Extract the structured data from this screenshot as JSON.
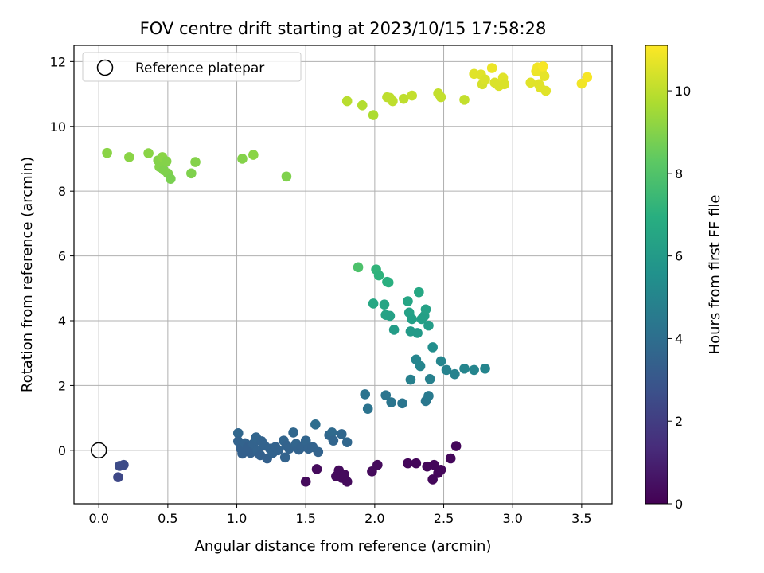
{
  "chart_data": {
    "type": "scatter",
    "title": "FOV centre drift starting at 2023/10/15 17:58:28",
    "xlabel": "Angular distance from reference (arcmin)",
    "ylabel": "Rotation from reference (arcmin)",
    "xlim": [
      -0.18,
      3.72
    ],
    "ylim": [
      -1.65,
      12.5
    ],
    "xticks": [
      "0.0",
      "0.5",
      "1.0",
      "1.5",
      "2.0",
      "2.5",
      "3.0",
      "3.5"
    ],
    "yticks": [
      "0",
      "2",
      "4",
      "6",
      "8",
      "10",
      "12"
    ],
    "grid": true,
    "legend": {
      "position": "upper-left",
      "label": "Reference platepar"
    },
    "reference_point": {
      "x": 0.0,
      "y": 0.0
    },
    "colorbar": {
      "label": "Hours from first FF file",
      "colormap": "viridis",
      "range": [
        0,
        11.1
      ],
      "ticks": [
        "0",
        "2",
        "4",
        "6",
        "8",
        "10"
      ]
    },
    "points": [
      {
        "x": 0.15,
        "y": -0.48,
        "h": 2.5
      },
      {
        "x": 0.18,
        "y": -0.45,
        "h": 2.5
      },
      {
        "x": 0.14,
        "y": -0.83,
        "h": 2.4
      },
      {
        "x": 1.5,
        "y": -0.97,
        "h": 0.3
      },
      {
        "x": 1.58,
        "y": -0.58,
        "h": 0.3
      },
      {
        "x": 1.72,
        "y": -0.8,
        "h": 0.3
      },
      {
        "x": 1.74,
        "y": -0.62,
        "h": 0.3
      },
      {
        "x": 1.76,
        "y": -0.85,
        "h": 0.3
      },
      {
        "x": 1.78,
        "y": -0.75,
        "h": 0.3
      },
      {
        "x": 1.8,
        "y": -0.97,
        "h": 0.3
      },
      {
        "x": 1.98,
        "y": -0.65,
        "h": 0.3
      },
      {
        "x": 2.02,
        "y": -0.45,
        "h": 0.3
      },
      {
        "x": 2.24,
        "y": -0.4,
        "h": 0.2
      },
      {
        "x": 2.3,
        "y": -0.4,
        "h": 0.2
      },
      {
        "x": 2.38,
        "y": -0.5,
        "h": 0.2
      },
      {
        "x": 2.42,
        "y": -0.9,
        "h": 0.2
      },
      {
        "x": 2.43,
        "y": -0.45,
        "h": 0.2
      },
      {
        "x": 2.46,
        "y": -0.7,
        "h": 0.2
      },
      {
        "x": 2.48,
        "y": -0.6,
        "h": 0.2
      },
      {
        "x": 2.55,
        "y": -0.25,
        "h": 0.2
      },
      {
        "x": 2.59,
        "y": 0.13,
        "h": 0.2
      },
      {
        "x": 1.01,
        "y": 0.53,
        "h": 3.7
      },
      {
        "x": 1.01,
        "y": 0.28,
        "h": 3.5
      },
      {
        "x": 1.03,
        "y": 0.05,
        "h": 3.4
      },
      {
        "x": 1.04,
        "y": -0.1,
        "h": 3.4
      },
      {
        "x": 1.06,
        "y": 0.22,
        "h": 3.5
      },
      {
        "x": 1.08,
        "y": 0.1,
        "h": 3.4
      },
      {
        "x": 1.1,
        "y": -0.08,
        "h": 3.4
      },
      {
        "x": 1.12,
        "y": 0.2,
        "h": 3.5
      },
      {
        "x": 1.14,
        "y": 0.4,
        "h": 3.6
      },
      {
        "x": 1.15,
        "y": 0.0,
        "h": 3.5
      },
      {
        "x": 1.17,
        "y": -0.15,
        "h": 3.4
      },
      {
        "x": 1.18,
        "y": 0.28,
        "h": 3.5
      },
      {
        "x": 1.2,
        "y": 0.15,
        "h": 3.5
      },
      {
        "x": 1.22,
        "y": -0.25,
        "h": 3.4
      },
      {
        "x": 1.24,
        "y": 0.05,
        "h": 3.5
      },
      {
        "x": 1.26,
        "y": -0.08,
        "h": 3.5
      },
      {
        "x": 1.28,
        "y": 0.1,
        "h": 3.5
      },
      {
        "x": 1.3,
        "y": 0.0,
        "h": 3.5
      },
      {
        "x": 1.34,
        "y": 0.3,
        "h": 3.6
      },
      {
        "x": 1.35,
        "y": -0.22,
        "h": 3.5
      },
      {
        "x": 1.36,
        "y": 0.15,
        "h": 3.5
      },
      {
        "x": 1.38,
        "y": 0.05,
        "h": 3.5
      },
      {
        "x": 1.41,
        "y": 0.55,
        "h": 3.7
      },
      {
        "x": 1.43,
        "y": 0.2,
        "h": 3.6
      },
      {
        "x": 1.45,
        "y": 0.02,
        "h": 3.5
      },
      {
        "x": 1.47,
        "y": 0.1,
        "h": 3.5
      },
      {
        "x": 1.5,
        "y": 0.3,
        "h": 3.6
      },
      {
        "x": 1.52,
        "y": 0.05,
        "h": 3.5
      },
      {
        "x": 1.55,
        "y": 0.1,
        "h": 3.5
      },
      {
        "x": 1.57,
        "y": 0.8,
        "h": 4.0
      },
      {
        "x": 1.59,
        "y": -0.05,
        "h": 3.5
      },
      {
        "x": 1.67,
        "y": 0.47,
        "h": 3.7
      },
      {
        "x": 1.69,
        "y": 0.55,
        "h": 3.8
      },
      {
        "x": 1.7,
        "y": 0.3,
        "h": 3.6
      },
      {
        "x": 1.76,
        "y": 0.5,
        "h": 3.7
      },
      {
        "x": 1.8,
        "y": 0.25,
        "h": 3.7
      },
      {
        "x": 1.93,
        "y": 1.73,
        "h": 4.2
      },
      {
        "x": 1.95,
        "y": 1.28,
        "h": 4.2
      },
      {
        "x": 2.08,
        "y": 1.7,
        "h": 4.3
      },
      {
        "x": 2.12,
        "y": 1.48,
        "h": 4.3
      },
      {
        "x": 2.2,
        "y": 1.45,
        "h": 4.3
      },
      {
        "x": 2.26,
        "y": 2.18,
        "h": 4.8
      },
      {
        "x": 2.3,
        "y": 2.8,
        "h": 5.0
      },
      {
        "x": 2.33,
        "y": 2.6,
        "h": 5.0
      },
      {
        "x": 2.37,
        "y": 1.52,
        "h": 4.4
      },
      {
        "x": 2.39,
        "y": 1.68,
        "h": 4.5
      },
      {
        "x": 2.4,
        "y": 2.2,
        "h": 4.8
      },
      {
        "x": 2.42,
        "y": 3.18,
        "h": 5.4
      },
      {
        "x": 2.48,
        "y": 2.75,
        "h": 5.0
      },
      {
        "x": 2.52,
        "y": 2.48,
        "h": 4.9
      },
      {
        "x": 2.58,
        "y": 2.35,
        "h": 4.9
      },
      {
        "x": 2.65,
        "y": 2.52,
        "h": 5.0
      },
      {
        "x": 2.72,
        "y": 2.48,
        "h": 5.0
      },
      {
        "x": 2.8,
        "y": 2.52,
        "h": 5.0
      },
      {
        "x": 1.99,
        "y": 4.53,
        "h": 6.6
      },
      {
        "x": 2.07,
        "y": 4.5,
        "h": 6.5
      },
      {
        "x": 2.08,
        "y": 4.18,
        "h": 6.4
      },
      {
        "x": 2.11,
        "y": 4.15,
        "h": 6.3
      },
      {
        "x": 2.14,
        "y": 3.72,
        "h": 6.1
      },
      {
        "x": 2.24,
        "y": 4.6,
        "h": 6.5
      },
      {
        "x": 2.25,
        "y": 4.25,
        "h": 6.3
      },
      {
        "x": 2.26,
        "y": 3.67,
        "h": 6.0
      },
      {
        "x": 2.27,
        "y": 4.05,
        "h": 6.2
      },
      {
        "x": 2.31,
        "y": 3.62,
        "h": 6.0
      },
      {
        "x": 2.32,
        "y": 4.88,
        "h": 6.6
      },
      {
        "x": 2.34,
        "y": 4.05,
        "h": 6.2
      },
      {
        "x": 2.36,
        "y": 4.15,
        "h": 6.2
      },
      {
        "x": 2.37,
        "y": 4.35,
        "h": 6.3
      },
      {
        "x": 2.39,
        "y": 3.85,
        "h": 6.1
      },
      {
        "x": 1.88,
        "y": 5.65,
        "h": 7.9
      },
      {
        "x": 2.01,
        "y": 5.58,
        "h": 7.2
      },
      {
        "x": 2.03,
        "y": 5.4,
        "h": 7.1
      },
      {
        "x": 2.09,
        "y": 5.2,
        "h": 7.0
      },
      {
        "x": 2.1,
        "y": 5.18,
        "h": 7.0
      },
      {
        "x": 0.06,
        "y": 9.18,
        "h": 9.1
      },
      {
        "x": 0.22,
        "y": 9.05,
        "h": 9.1
      },
      {
        "x": 0.36,
        "y": 9.17,
        "h": 9.1
      },
      {
        "x": 0.43,
        "y": 8.95,
        "h": 9.0
      },
      {
        "x": 0.44,
        "y": 8.75,
        "h": 9.0
      },
      {
        "x": 0.46,
        "y": 9.05,
        "h": 9.1
      },
      {
        "x": 0.47,
        "y": 8.65,
        "h": 8.9
      },
      {
        "x": 0.49,
        "y": 8.92,
        "h": 9.0
      },
      {
        "x": 0.5,
        "y": 8.55,
        "h": 8.9
      },
      {
        "x": 0.52,
        "y": 8.38,
        "h": 8.8
      },
      {
        "x": 0.67,
        "y": 8.55,
        "h": 8.9
      },
      {
        "x": 0.7,
        "y": 8.9,
        "h": 9.0
      },
      {
        "x": 1.04,
        "y": 9.0,
        "h": 9.0
      },
      {
        "x": 1.12,
        "y": 9.12,
        "h": 9.1
      },
      {
        "x": 1.36,
        "y": 8.45,
        "h": 8.9
      },
      {
        "x": 1.8,
        "y": 10.78,
        "h": 9.9
      },
      {
        "x": 1.91,
        "y": 10.65,
        "h": 9.8
      },
      {
        "x": 1.99,
        "y": 10.35,
        "h": 9.7
      },
      {
        "x": 2.09,
        "y": 10.9,
        "h": 10.0
      },
      {
        "x": 2.11,
        "y": 10.88,
        "h": 10.0
      },
      {
        "x": 2.13,
        "y": 10.78,
        "h": 10.0
      },
      {
        "x": 2.21,
        "y": 10.85,
        "h": 10.0
      },
      {
        "x": 2.27,
        "y": 10.95,
        "h": 10.1
      },
      {
        "x": 2.46,
        "y": 11.02,
        "h": 10.1
      },
      {
        "x": 2.48,
        "y": 10.9,
        "h": 10.1
      },
      {
        "x": 2.65,
        "y": 10.82,
        "h": 10.1
      },
      {
        "x": 2.72,
        "y": 11.62,
        "h": 10.6
      },
      {
        "x": 2.77,
        "y": 11.6,
        "h": 10.6
      },
      {
        "x": 2.78,
        "y": 11.3,
        "h": 10.4
      },
      {
        "x": 2.8,
        "y": 11.45,
        "h": 10.5
      },
      {
        "x": 2.85,
        "y": 11.8,
        "h": 10.8
      },
      {
        "x": 2.87,
        "y": 11.35,
        "h": 10.5
      },
      {
        "x": 2.9,
        "y": 11.25,
        "h": 10.5
      },
      {
        "x": 2.92,
        "y": 11.35,
        "h": 10.5
      },
      {
        "x": 2.93,
        "y": 11.5,
        "h": 10.6
      },
      {
        "x": 2.94,
        "y": 11.3,
        "h": 10.5
      },
      {
        "x": 3.13,
        "y": 11.35,
        "h": 10.6
      },
      {
        "x": 3.17,
        "y": 11.7,
        "h": 10.8
      },
      {
        "x": 3.18,
        "y": 11.82,
        "h": 10.9
      },
      {
        "x": 3.19,
        "y": 11.3,
        "h": 10.6
      },
      {
        "x": 3.2,
        "y": 11.2,
        "h": 10.6
      },
      {
        "x": 3.21,
        "y": 11.7,
        "h": 10.8
      },
      {
        "x": 3.22,
        "y": 11.85,
        "h": 11.0
      },
      {
        "x": 3.23,
        "y": 11.55,
        "h": 10.7
      },
      {
        "x": 3.24,
        "y": 11.1,
        "h": 10.6
      },
      {
        "x": 3.5,
        "y": 11.32,
        "h": 10.9
      },
      {
        "x": 3.54,
        "y": 11.52,
        "h": 11.0
      }
    ]
  }
}
